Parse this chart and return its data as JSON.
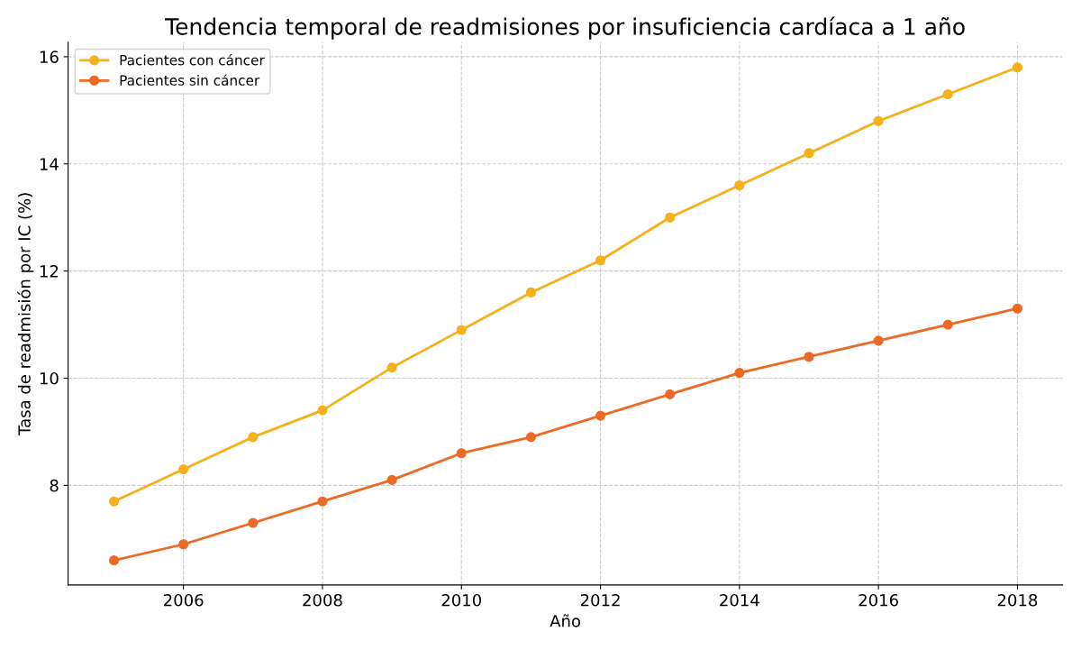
{
  "chart_data": {
    "type": "line",
    "title": "Tendencia temporal de readmisiones por insuficiencia cardíaca a 1 año",
    "xlabel": "Año",
    "ylabel": "Tasa de readmisión por IC (%)",
    "x": [
      2005,
      2006,
      2007,
      2008,
      2009,
      2010,
      2011,
      2012,
      2013,
      2014,
      2015,
      2016,
      2017,
      2018
    ],
    "series": [
      {
        "name": "Pacientes con cáncer",
        "color": "#f5b01a",
        "values": [
          7.7,
          8.3,
          8.9,
          9.4,
          10.2,
          10.9,
          11.6,
          12.2,
          13.0,
          13.6,
          14.2,
          14.8,
          15.3,
          15.8
        ]
      },
      {
        "name": "Pacientes sin cáncer",
        "color": "#ec6a25",
        "values": [
          6.6,
          6.9,
          7.3,
          7.7,
          8.1,
          8.6,
          8.9,
          9.3,
          9.7,
          10.1,
          10.4,
          10.7,
          11.0,
          11.3
        ]
      }
    ],
    "xlim": [
      2004.34,
      2018.65
    ],
    "xticks": [
      2006,
      2008,
      2010,
      2012,
      2014,
      2016,
      2018
    ],
    "ylim": [
      6.14,
      16.27
    ],
    "yticks": [
      8,
      10,
      12,
      14,
      16
    ],
    "grid": true,
    "legend": "top left",
    "marker": "circle",
    "line_style": "solid"
  }
}
